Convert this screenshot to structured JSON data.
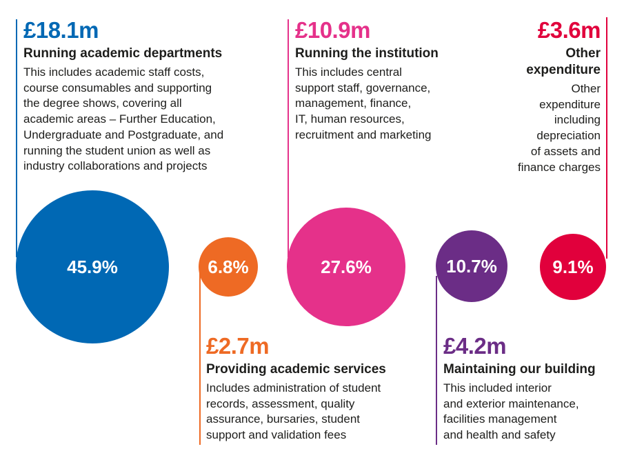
{
  "chart_data": {
    "type": "bubble",
    "currency_unit": "£m",
    "items": [
      {
        "key": "academic",
        "amount": "£18.1m",
        "value": 18.1,
        "percent": 45.9,
        "percent_label": "45.9%",
        "title": "Running academic departments",
        "description": [
          "This includes academic staff costs,",
          "course consumables and supporting",
          "the degree shows, covering all",
          "academic areas – Further Education,",
          "Undergraduate and Postgraduate, and",
          "running the student union as well as",
          "industry collaborations and projects"
        ],
        "color": "#0068b4"
      },
      {
        "key": "services",
        "amount": "£2.7m",
        "value": 2.7,
        "percent": 6.8,
        "percent_label": "6.8%",
        "title": "Providing academic services",
        "description": [
          "Includes administration of student",
          "records, assessment, quality",
          "assurance, bursaries, student",
          "support and validation fees"
        ],
        "color": "#ee6a24"
      },
      {
        "key": "institution",
        "amount": "£10.9m",
        "value": 10.9,
        "percent": 27.6,
        "percent_label": "27.6%",
        "title": "Running the institution",
        "description": [
          "This includes central",
          "support staff, governance,",
          "management, finance,",
          "IT, human resources,",
          "recruitment and marketing"
        ],
        "color": "#e5318a"
      },
      {
        "key": "building",
        "amount": "£4.2m",
        "value": 4.2,
        "percent": 10.7,
        "percent_label": "10.7%",
        "title": "Maintaining our building",
        "description": [
          "This included interior",
          "and exterior maintenance,",
          "facilities management",
          "and health and safety"
        ],
        "color": "#6b2d86"
      },
      {
        "key": "other",
        "amount": "£3.6m",
        "value": 3.6,
        "percent": 9.1,
        "percent_label": "9.1%",
        "title": [
          "Other",
          "expenditure"
        ],
        "description": [
          "Other",
          "expenditure",
          "including",
          "depreciation",
          "of assets and",
          "finance charges"
        ],
        "color": "#e1003c"
      }
    ]
  }
}
